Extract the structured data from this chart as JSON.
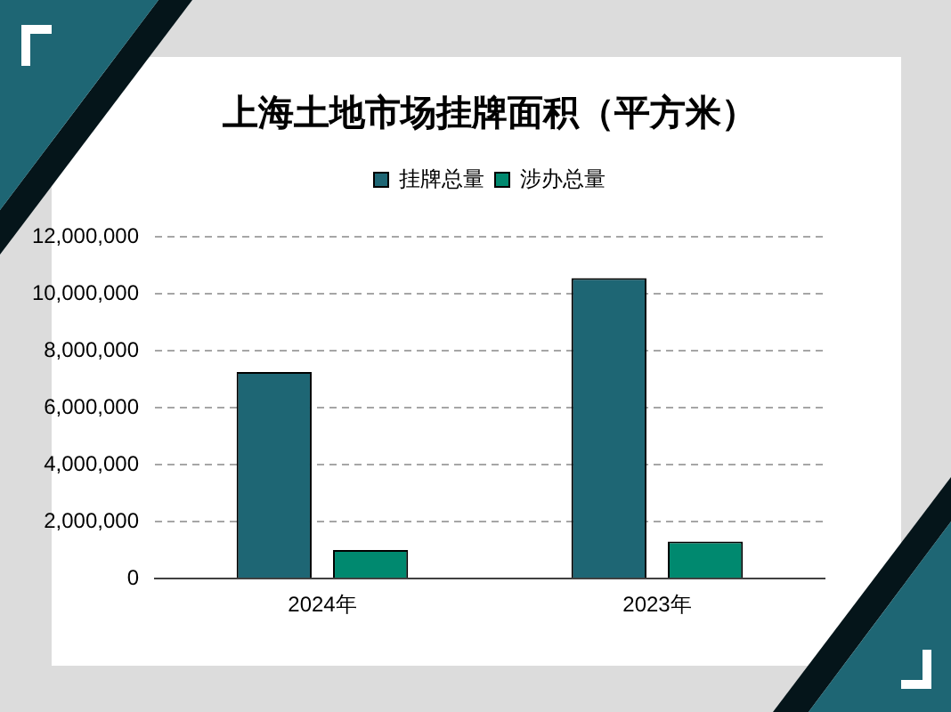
{
  "chart_data": {
    "type": "bar",
    "title": "上海土地市场挂牌面积（平方米）",
    "categories": [
      "2024年",
      "2023年"
    ],
    "series": [
      {
        "name": "挂牌总量",
        "color": "#1e6674",
        "values": [
          7250000,
          10550000
        ]
      },
      {
        "name": "涉办总量",
        "color": "#00896f",
        "values": [
          1000000,
          1300000
        ]
      }
    ],
    "ylim": [
      0,
      12000000
    ],
    "yticks": [
      0,
      {
        "value": 2000000,
        "label": "2,000,000"
      },
      {
        "value": 4000000,
        "label": "4,000,000"
      },
      {
        "value": 6000000,
        "label": "6,000,000"
      },
      {
        "value": 8000000,
        "label": "8,000,000"
      },
      {
        "value": 10000000,
        "label": "10,000,000"
      },
      {
        "value": 12000000,
        "label": "12,000,000"
      }
    ],
    "grid": "y",
    "legend": "top"
  }
}
